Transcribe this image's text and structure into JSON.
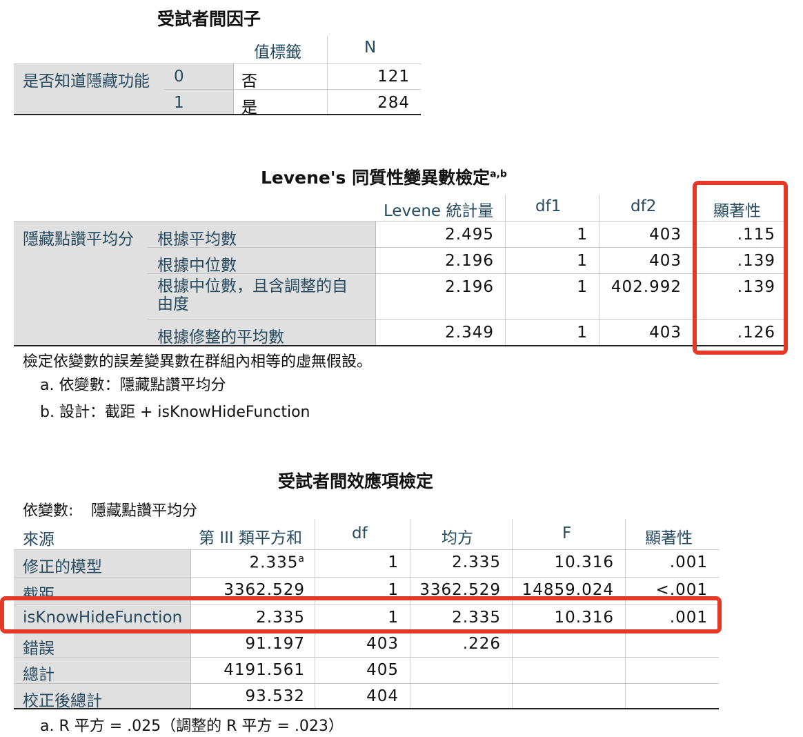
{
  "table1": {
    "title": "受試者間因子",
    "col_value_label": "值標籤",
    "col_n": "N",
    "row_var": "是否知道隱藏功能",
    "rows": [
      {
        "code": "0",
        "label": "否",
        "n": "121"
      },
      {
        "code": "1",
        "label": "是",
        "n": "284"
      }
    ]
  },
  "table2": {
    "title": "Levene's 同質性變異數檢定",
    "title_sup": "a,b",
    "col_stat": "Levene 統計量",
    "col_df1": "df1",
    "col_df2": "df2",
    "col_sig": "顯著性",
    "row_var": "隱藏點讚平均分",
    "rows": [
      {
        "label": "根據平均數",
        "stat": "2.495",
        "df1": "1",
        "df2": "403",
        "sig": ".115"
      },
      {
        "label": "根據中位數",
        "stat": "2.196",
        "df1": "1",
        "df2": "403",
        "sig": ".139"
      },
      {
        "label": "根據中位數，且含調整的自",
        "label2": "由度",
        "stat": "2.196",
        "df1": "1",
        "df2": "402.992",
        "sig": ".139"
      },
      {
        "label": "根據修整的平均數",
        "stat": "2.349",
        "df1": "1",
        "df2": "403",
        "sig": ".126"
      }
    ],
    "note_main": "檢定依變數的誤差變異數在群組內相等的虛無假設。",
    "note_a": "a. 依變數：隱藏點讚平均分",
    "note_b": "b. 設計：截距 + isKnowHideFunction"
  },
  "table3": {
    "title": "受試者間效應項檢定",
    "dep_label": "依變數:",
    "dep_value": "隱藏點讚平均分",
    "col_source": "來源",
    "col_ss": "第 III 類平方和",
    "col_df": "df",
    "col_ms": "均方",
    "col_f": "F",
    "col_sig": "顯著性",
    "rows": [
      {
        "source": "修正的模型",
        "ss": "2.335",
        "ss_sup": "a",
        "df": "1",
        "ms": "2.335",
        "f": "10.316",
        "sig": ".001"
      },
      {
        "source": "截距",
        "ss": "3362.529",
        "df": "1",
        "ms": "3362.529",
        "f": "14859.024",
        "sig": "<.001"
      },
      {
        "source": "isKnowHideFunction",
        "ss": "2.335",
        "df": "1",
        "ms": "2.335",
        "f": "10.316",
        "sig": ".001"
      },
      {
        "source": "錯誤",
        "ss": "91.197",
        "df": "403",
        "ms": ".226",
        "f": "",
        "sig": ""
      },
      {
        "source": "總計",
        "ss": "4191.561",
        "df": "405",
        "ms": "",
        "f": "",
        "sig": ""
      },
      {
        "source": "校正後總計",
        "ss": "93.532",
        "df": "404",
        "ms": "",
        "f": "",
        "sig": ""
      }
    ],
    "note_a": "a. R 平方 = .025（調整的 R 平方 = .023）"
  },
  "highlight_color": "#e23a26"
}
